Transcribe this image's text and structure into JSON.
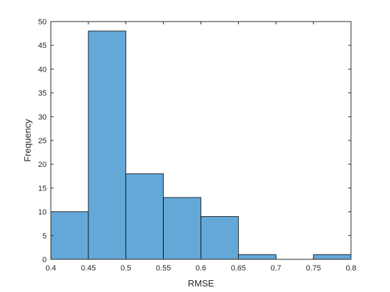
{
  "chart_data": {
    "type": "bar",
    "subtype": "histogram",
    "title": "",
    "xlabel": "RMSE",
    "ylabel": "Frequency",
    "xlim": [
      0.4,
      0.8
    ],
    "ylim": [
      0,
      50
    ],
    "bin_edges": [
      0.4,
      0.45,
      0.5,
      0.55,
      0.6,
      0.65,
      0.7,
      0.75,
      0.8
    ],
    "values": [
      10,
      48,
      18,
      13,
      9,
      1,
      0,
      1
    ],
    "xticks": [
      "0.4",
      "0.45",
      "0.5",
      "0.55",
      "0.6",
      "0.65",
      "0.7",
      "0.75",
      "0.8"
    ],
    "yticks": [
      "0",
      "5",
      "10",
      "15",
      "20",
      "25",
      "30",
      "35",
      "40",
      "45",
      "50"
    ],
    "grid": false,
    "colors": {
      "bar_fill": "#64a8d8",
      "bar_edge": "#000000",
      "axis": "#262626"
    }
  }
}
